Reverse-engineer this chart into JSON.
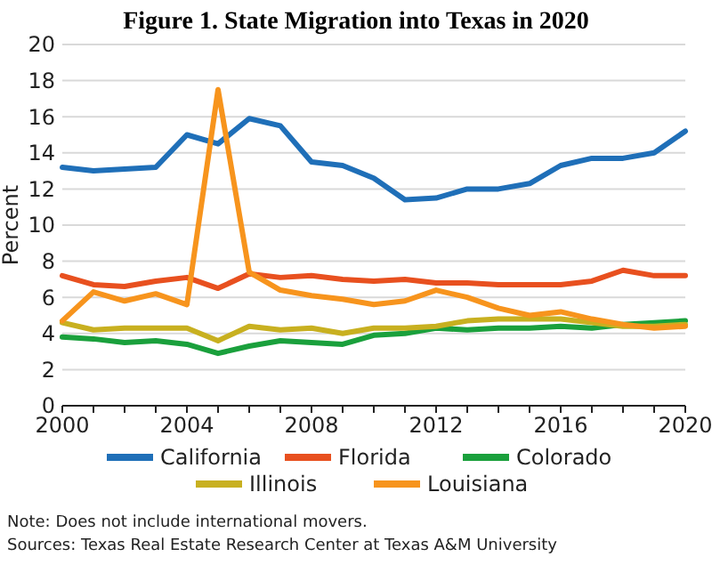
{
  "chart_data": {
    "type": "line",
    "title": "Figure 1. State Migration into Texas in 2020",
    "ylabel": "Percent",
    "x": [
      2000,
      2001,
      2002,
      2003,
      2004,
      2005,
      2006,
      2007,
      2008,
      2009,
      2010,
      2011,
      2012,
      2013,
      2014,
      2015,
      2016,
      2017,
      2018,
      2019,
      2020
    ],
    "series": [
      {
        "name": "California",
        "color": "#1f6fb8",
        "values": [
          13.2,
          13.0,
          13.1,
          13.2,
          15.0,
          14.5,
          15.9,
          15.5,
          13.5,
          13.3,
          12.6,
          11.4,
          11.5,
          12.0,
          12.0,
          12.3,
          13.3,
          13.7,
          13.7,
          14.0,
          15.2
        ]
      },
      {
        "name": "Florida",
        "color": "#e8501f",
        "values": [
          7.2,
          6.7,
          6.6,
          6.9,
          7.1,
          6.5,
          7.3,
          7.1,
          7.2,
          7.0,
          6.9,
          7.0,
          6.8,
          6.8,
          6.7,
          6.7,
          6.7,
          6.9,
          7.5,
          7.2,
          7.2
        ]
      },
      {
        "name": "Colorado",
        "color": "#1aa03c",
        "values": [
          3.8,
          3.7,
          3.5,
          3.6,
          3.4,
          2.9,
          3.3,
          3.6,
          3.5,
          3.4,
          3.9,
          4.0,
          4.3,
          4.2,
          4.3,
          4.3,
          4.4,
          4.3,
          4.5,
          4.6,
          4.7
        ]
      },
      {
        "name": "Illinois",
        "color": "#c8b020",
        "values": [
          4.6,
          4.2,
          4.3,
          4.3,
          4.3,
          3.6,
          4.4,
          4.2,
          4.3,
          4.0,
          4.3,
          4.3,
          4.4,
          4.7,
          4.8,
          4.8,
          4.8,
          4.6,
          4.4,
          4.4,
          4.5
        ]
      },
      {
        "name": "Louisiana",
        "color": "#f7941d",
        "values": [
          4.7,
          6.3,
          5.8,
          6.2,
          5.6,
          17.5,
          7.4,
          6.4,
          6.1,
          5.9,
          5.6,
          5.8,
          6.4,
          6.0,
          5.4,
          5.0,
          5.2,
          4.8,
          4.5,
          4.3,
          4.4
        ]
      }
    ],
    "xlim": [
      2000,
      2020
    ],
    "xticks": [
      2000,
      {
        "value": 2001,
        "label": null
      },
      {
        "value": 2002,
        "label": null
      },
      {
        "value": 2003,
        "label": null
      },
      2004,
      {
        "value": 2005,
        "label": null
      },
      {
        "value": 2006,
        "label": null
      },
      {
        "value": 2007,
        "label": null
      },
      2008,
      {
        "value": 2009,
        "label": null
      },
      {
        "value": 2010,
        "label": null
      },
      {
        "value": 2011,
        "label": null
      },
      2012,
      {
        "value": 2013,
        "label": null
      },
      {
        "value": 2014,
        "label": null
      },
      {
        "value": 2015,
        "label": null
      },
      2016,
      {
        "value": 2017,
        "label": null
      },
      {
        "value": 2018,
        "label": null
      },
      {
        "value": 2019,
        "label": null
      },
      2020
    ],
    "ylim": [
      0,
      20
    ],
    "yticks": [
      0,
      2,
      4,
      6,
      8,
      10,
      12,
      14,
      16,
      18,
      20
    ],
    "grid": "y",
    "legend": "bottom",
    "marker": "none",
    "line_style": "solid",
    "annotations": [
      "Note: Does not include international movers.",
      "Sources: Texas Real Estate Research Center at Texas A&M University"
    ]
  }
}
